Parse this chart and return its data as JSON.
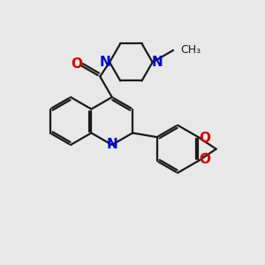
{
  "bg_color": "#e8e8e8",
  "bond_color": "#1a1a1a",
  "N_color": "#0000cc",
  "O_color": "#cc0000",
  "line_width": 1.6,
  "font_size": 10,
  "fig_size": [
    3.0,
    3.0
  ],
  "dpi": 100,
  "methyl_label": "CH₃",
  "N_label": "N",
  "O_label": "O"
}
